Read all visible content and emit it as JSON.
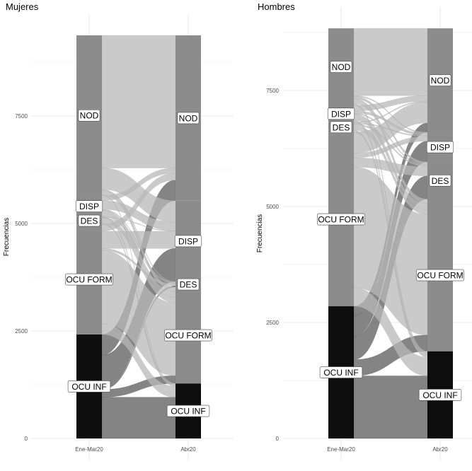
{
  "chart_data": [
    {
      "type": "alluvial",
      "title": "Mujeres",
      "ylabel": "Frecuencias",
      "xlabel": "",
      "categories": [
        "Ene-Mar20",
        "Abr20"
      ],
      "yticks": [
        0,
        2500,
        5000,
        7500
      ],
      "ylim": [
        0,
        9375
      ],
      "grid": true,
      "strata_order": [
        "OCU INF",
        "OCU FORM",
        "DES",
        "DISP",
        "NOD"
      ],
      "strata": {
        "Ene-Mar20": {
          "OCU INF": 2420,
          "OCU FORM": 2560,
          "DES": 170,
          "DISP": 500,
          "NOD": 3725
        },
        "Abr20": {
          "OCU INF": 1280,
          "OCU FORM": 2240,
          "DES": 130,
          "DISP": 1880,
          "NOD": 3845
        }
      },
      "flows": [
        [
          "OCU INF",
          "OCU INF",
          960
        ],
        [
          "OCU INF",
          "OCU FORM",
          180
        ],
        [
          "OCU INF",
          "DES",
          30
        ],
        [
          "OCU INF",
          "DISP",
          770
        ],
        [
          "OCU INF",
          "NOD",
          480
        ],
        [
          "OCU FORM",
          "OCU INF",
          250
        ],
        [
          "OCU FORM",
          "OCU FORM",
          1700
        ],
        [
          "OCU FORM",
          "DES",
          50
        ],
        [
          "OCU FORM",
          "DISP",
          400
        ],
        [
          "OCU FORM",
          "NOD",
          160
        ],
        [
          "DES",
          "OCU INF",
          30
        ],
        [
          "DES",
          "OCU FORM",
          120
        ],
        [
          "DES",
          "DES",
          10
        ],
        [
          "DES",
          "DISP",
          10
        ],
        [
          "DES",
          "NOD",
          0
        ],
        [
          "DISP",
          "OCU INF",
          20
        ],
        [
          "DISP",
          "OCU FORM",
          140
        ],
        [
          "DISP",
          "DES",
          20
        ],
        [
          "DISP",
          "DISP",
          200
        ],
        [
          "DISP",
          "NOD",
          120
        ],
        [
          "NOD",
          "OCU INF",
          20
        ],
        [
          "NOD",
          "OCU FORM",
          100
        ],
        [
          "NOD",
          "DES",
          20
        ],
        [
          "NOD",
          "DISP",
          500
        ],
        [
          "NOD",
          "NOD",
          3085
        ]
      ]
    },
    {
      "type": "alluvial",
      "title": "Hombres",
      "ylabel": "Frecuencias",
      "xlabel": "",
      "categories": [
        "Ene-Mar20",
        "Abr20"
      ],
      "yticks": [
        0,
        2500,
        5000,
        7500
      ],
      "ylim": [
        0,
        8840
      ],
      "grid": true,
      "strata_order": [
        "OCU INF",
        "OCU FORM",
        "DES",
        "DISP",
        "NOD"
      ],
      "strata": {
        "Ene-Mar20": {
          "OCU INF": 2850,
          "OCU FORM": 3750,
          "DES": 220,
          "DISP": 360,
          "NOD": 1660
        },
        "Abr20": {
          "OCU INF": 1880,
          "OCU FORM": 3280,
          "DES": 800,
          "DISP": 640,
          "NOD": 2240
        }
      },
      "flows": [
        [
          "OCU INF",
          "OCU INF",
          1350
        ],
        [
          "OCU INF",
          "OCU FORM",
          350
        ],
        [
          "OCU INF",
          "DES",
          500
        ],
        [
          "OCU INF",
          "DISP",
          450
        ],
        [
          "OCU INF",
          "NOD",
          200
        ],
        [
          "OCU FORM",
          "OCU INF",
          400
        ],
        [
          "OCU FORM",
          "OCU FORM",
          2600
        ],
        [
          "OCU FORM",
          "DES",
          200
        ],
        [
          "OCU FORM",
          "DISP",
          100
        ],
        [
          "OCU FORM",
          "NOD",
          450
        ],
        [
          "DES",
          "OCU INF",
          50
        ],
        [
          "DES",
          "OCU FORM",
          100
        ],
        [
          "DES",
          "DES",
          30
        ],
        [
          "DES",
          "DISP",
          20
        ],
        [
          "DES",
          "NOD",
          20
        ],
        [
          "DISP",
          "OCU INF",
          40
        ],
        [
          "DISP",
          "OCU FORM",
          130
        ],
        [
          "DISP",
          "DES",
          20
        ],
        [
          "DISP",
          "DISP",
          50
        ],
        [
          "DISP",
          "NOD",
          120
        ],
        [
          "NOD",
          "OCU INF",
          40
        ],
        [
          "NOD",
          "OCU FORM",
          100
        ],
        [
          "NOD",
          "DES",
          50
        ],
        [
          "NOD",
          "DISP",
          20
        ],
        [
          "NOD",
          "NOD",
          1450
        ]
      ]
    }
  ],
  "colors": {
    "stratum_ocu_inf": "#0d0d0d",
    "stratum_other": "#8c8c8c",
    "flow_from_ocu_inf": "#6e6e6e",
    "flow_other": "#b8b8b8",
    "grid": "#ebebeb"
  }
}
